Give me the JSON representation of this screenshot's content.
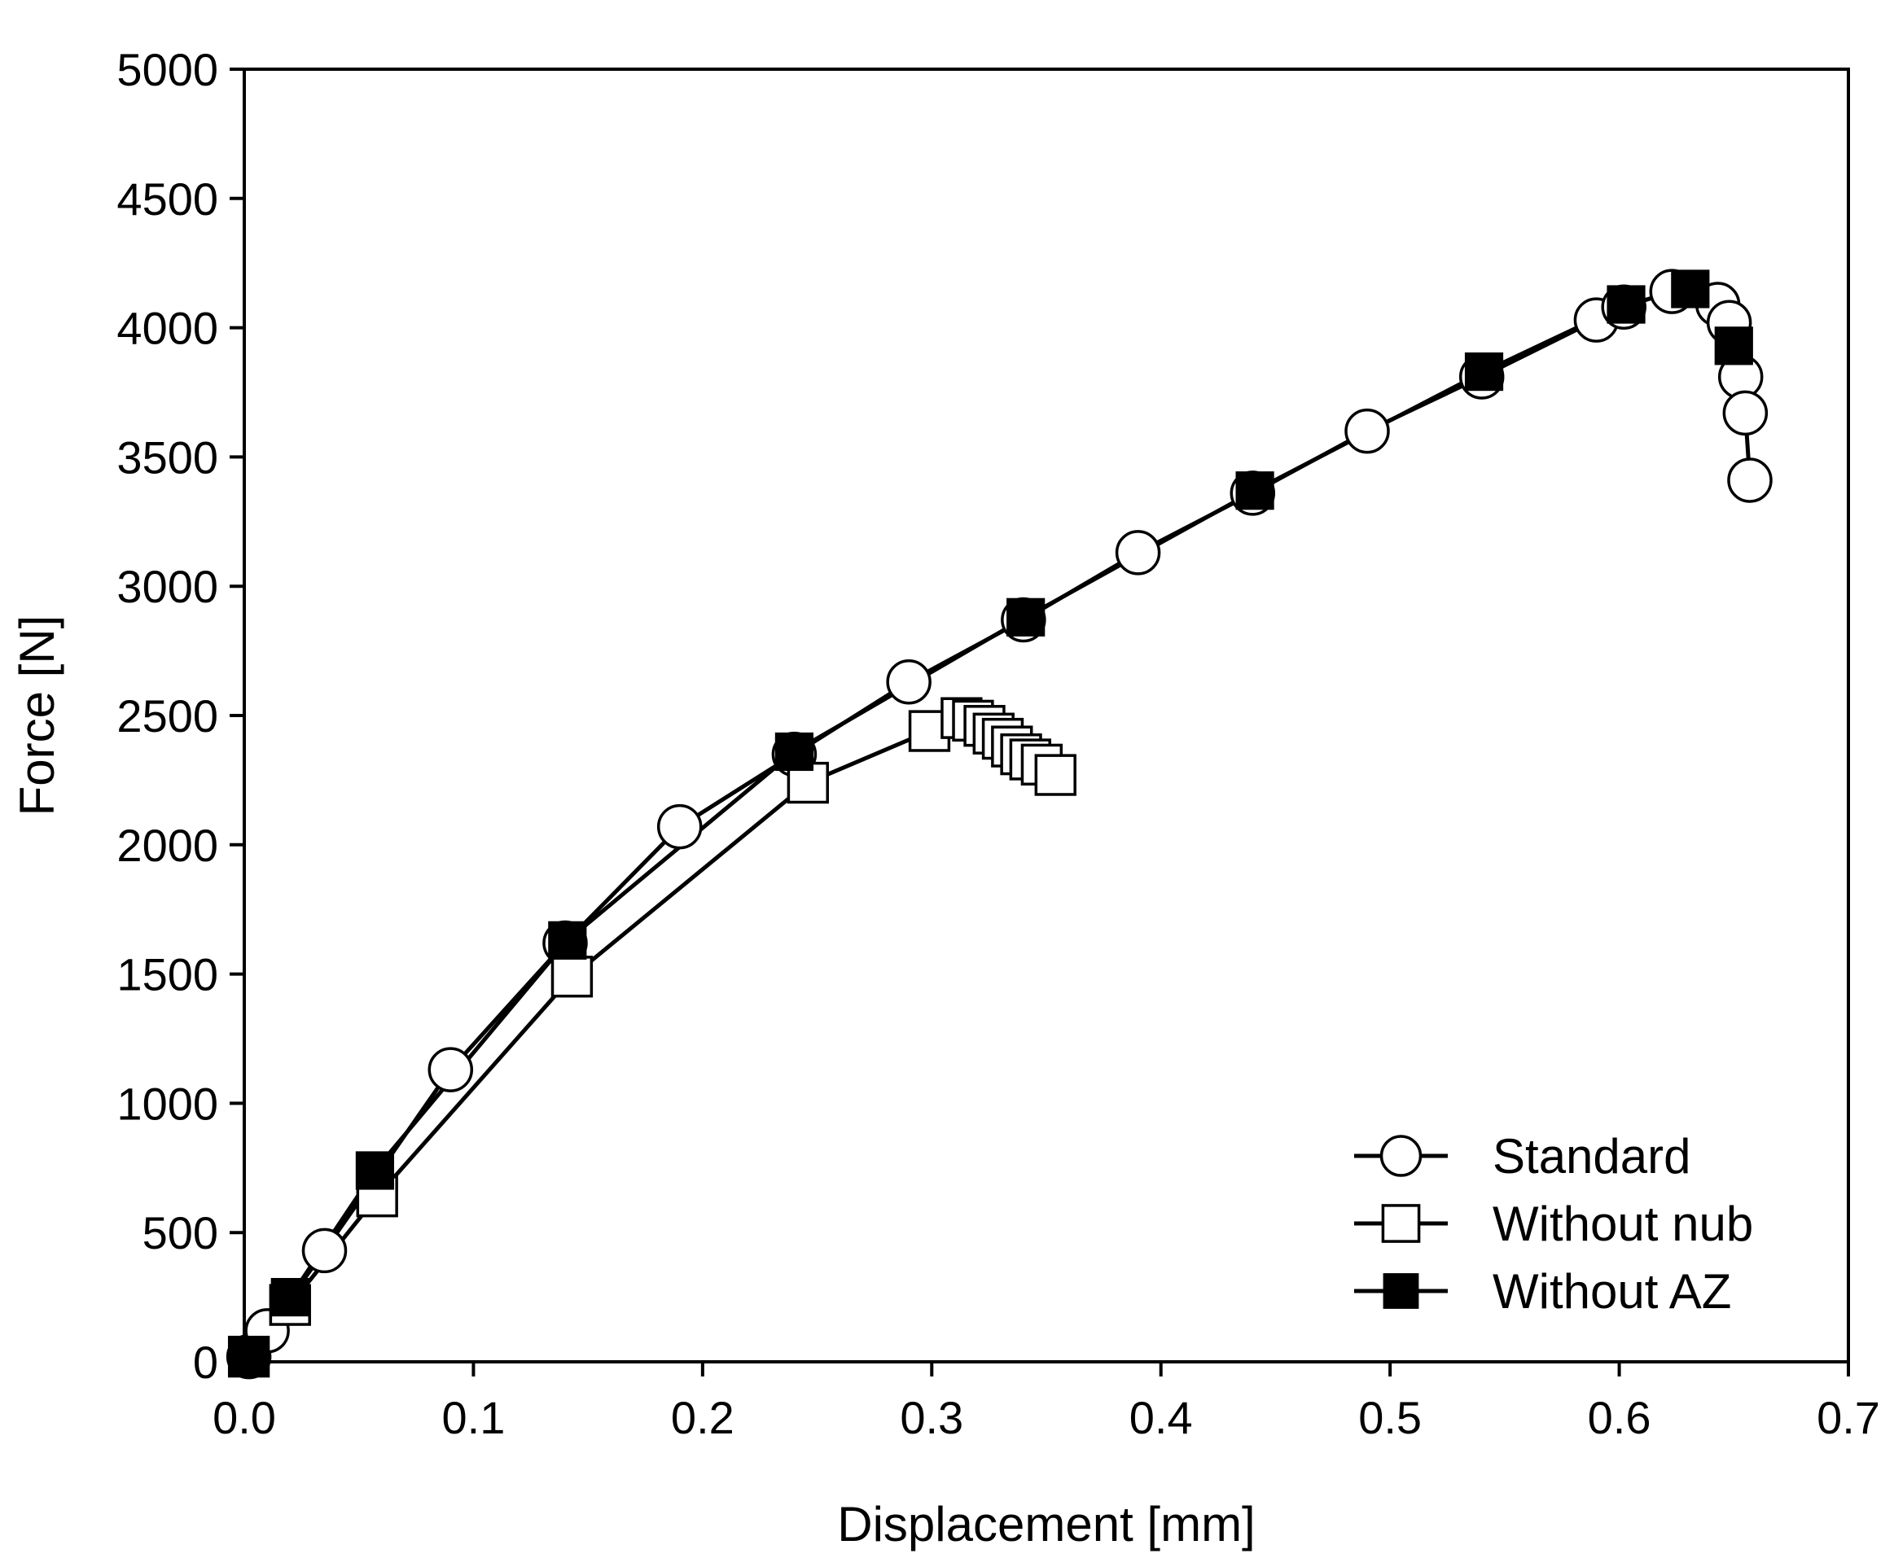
{
  "chart_data": {
    "type": "line",
    "title": "",
    "xlabel": "Displacement [mm]",
    "ylabel": "Force [N]",
    "xlim": [
      0.0,
      0.7
    ],
    "ylim": [
      0,
      5000
    ],
    "xticks": [
      "0.0",
      "0.1",
      "0.2",
      "0.3",
      "0.4",
      "0.5",
      "0.6",
      "0.7"
    ],
    "xtick_values": [
      0.0,
      0.1,
      0.2,
      0.3,
      0.4,
      0.5,
      0.6,
      0.7
    ],
    "yticks": [
      "0",
      "500",
      "1000",
      "1500",
      "2000",
      "2500",
      "3000",
      "3500",
      "4000",
      "4500",
      "5000"
    ],
    "ytick_values": [
      0,
      500,
      1000,
      1500,
      2000,
      2500,
      3000,
      3500,
      4000,
      4500,
      5000
    ],
    "grid": false,
    "legend_position": "bottom-right",
    "series": [
      {
        "name": "Standard",
        "marker": "open-circle",
        "color": "#000000",
        "x": [
          0.002,
          0.01,
          0.035,
          0.09,
          0.14,
          0.19,
          0.24,
          0.29,
          0.34,
          0.39,
          0.44,
          0.49,
          0.54,
          0.59,
          0.602,
          0.623,
          0.643,
          0.648,
          0.653,
          0.655,
          0.657
        ],
        "y": [
          20,
          120,
          430,
          1130,
          1620,
          2070,
          2350,
          2630,
          2870,
          3130,
          3360,
          3600,
          3810,
          4030,
          4080,
          4140,
          4090,
          4020,
          3810,
          3670,
          3410
        ]
      },
      {
        "name": "Without nub",
        "marker": "open-square",
        "color": "#000000",
        "x": [
          0.002,
          0.02,
          0.058,
          0.143,
          0.246,
          0.299,
          0.313,
          0.318,
          0.323,
          0.327,
          0.331,
          0.335,
          0.339,
          0.343,
          0.348,
          0.354
        ],
        "y": [
          20,
          220,
          640,
          1490,
          2240,
          2440,
          2490,
          2480,
          2460,
          2430,
          2410,
          2380,
          2350,
          2330,
          2310,
          2270
        ]
      },
      {
        "name": "Without AZ",
        "marker": "filled-square",
        "color": "#000000",
        "x": [
          0.002,
          0.02,
          0.057,
          0.141,
          0.24,
          0.341,
          0.441,
          0.541,
          0.603,
          0.631,
          0.65
        ],
        "y": [
          20,
          250,
          740,
          1630,
          2360,
          2880,
          3370,
          3830,
          4090,
          4150,
          3930
        ]
      }
    ]
  }
}
